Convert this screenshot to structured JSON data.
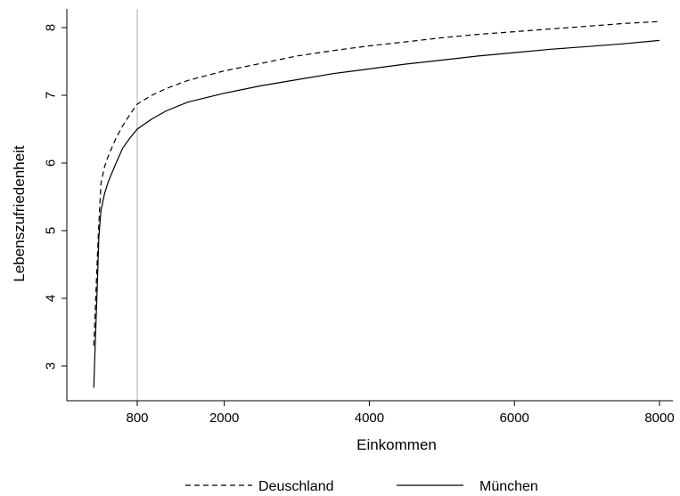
{
  "chart_data": {
    "type": "line",
    "title": "",
    "xlabel": "Einkommen",
    "ylabel": "Lebenszufriedenheit",
    "xlim": [
      0,
      8000
    ],
    "ylim": [
      2.5,
      8.2
    ],
    "x_ticks": [
      800,
      2000,
      4000,
      6000,
      8000
    ],
    "x_tick_labels": [
      "800",
      "2000",
      "4000",
      "6000",
      "8000"
    ],
    "y_ticks": [
      3,
      4,
      5,
      6,
      7,
      8
    ],
    "y_tick_labels": [
      "3",
      "4",
      "5",
      "6",
      "7",
      "8"
    ],
    "reference_line_x": 800,
    "grid": false,
    "legend_position": "bottom",
    "series": [
      {
        "name": "Deuschland",
        "line_style": "dashed",
        "color": "#000000",
        "points": [
          [
            200,
            3.3
          ],
          [
            220,
            3.8
          ],
          [
            250,
            4.6
          ],
          [
            270,
            5.1
          ],
          [
            300,
            5.7
          ],
          [
            350,
            5.95
          ],
          [
            400,
            6.1
          ],
          [
            500,
            6.35
          ],
          [
            600,
            6.55
          ],
          [
            700,
            6.72
          ],
          [
            800,
            6.87
          ],
          [
            1000,
            7.0
          ],
          [
            1200,
            7.1
          ],
          [
            1500,
            7.22
          ],
          [
            2000,
            7.36
          ],
          [
            2500,
            7.47
          ],
          [
            3000,
            7.58
          ],
          [
            3500,
            7.66
          ],
          [
            4000,
            7.73
          ],
          [
            4500,
            7.79
          ],
          [
            5000,
            7.85
          ],
          [
            5500,
            7.9
          ],
          [
            6000,
            7.94
          ],
          [
            6500,
            7.98
          ],
          [
            7000,
            8.02
          ],
          [
            7500,
            8.06
          ],
          [
            8000,
            8.09
          ]
        ]
      },
      {
        "name": "München",
        "line_style": "solid",
        "color": "#000000",
        "points": [
          [
            200,
            2.68
          ],
          [
            220,
            3.3
          ],
          [
            250,
            4.2
          ],
          [
            270,
            4.9
          ],
          [
            300,
            5.3
          ],
          [
            350,
            5.55
          ],
          [
            400,
            5.72
          ],
          [
            500,
            5.98
          ],
          [
            600,
            6.22
          ],
          [
            700,
            6.37
          ],
          [
            800,
            6.5
          ],
          [
            1000,
            6.65
          ],
          [
            1200,
            6.77
          ],
          [
            1500,
            6.9
          ],
          [
            2000,
            7.03
          ],
          [
            2500,
            7.14
          ],
          [
            3000,
            7.23
          ],
          [
            3500,
            7.32
          ],
          [
            4000,
            7.39
          ],
          [
            4500,
            7.46
          ],
          [
            5000,
            7.52
          ],
          [
            5500,
            7.58
          ],
          [
            6000,
            7.63
          ],
          [
            6500,
            7.68
          ],
          [
            7000,
            7.72
          ],
          [
            7500,
            7.76
          ],
          [
            8000,
            7.81
          ]
        ]
      }
    ]
  }
}
